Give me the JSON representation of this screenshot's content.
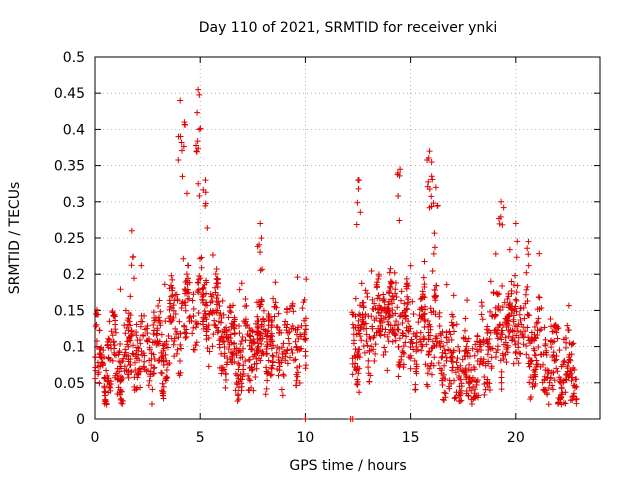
{
  "chart_data": {
    "type": "scatter",
    "title": "Day 110 of 2021, SRMTID for receiver ynki",
    "xlabel": "GPS time / hours",
    "ylabel": "SRMTID / TECUs",
    "xlim": [
      0,
      24
    ],
    "ylim": [
      0,
      0.5
    ],
    "xticks": [
      0,
      5,
      10,
      15,
      20
    ],
    "yticks": [
      0,
      0.05,
      0.1,
      0.15,
      0.2,
      0.25,
      0.3,
      0.35,
      0.4,
      0.45,
      0.5
    ],
    "xtick_labels": [
      "0",
      "5",
      "10",
      "15",
      "20"
    ],
    "ytick_labels": [
      "0",
      "0.05",
      "0.1",
      "0.15",
      "0.2",
      "0.25",
      "0.3",
      "0.35",
      "0.4",
      "0.45",
      "0.5"
    ],
    "grid": true,
    "marker": "+",
    "color": "#e00000",
    "gaps": [
      [
        10.05,
        12.2
      ]
    ],
    "series": [
      {
        "name": "SRMTID",
        "segments": [
          {
            "t0": 0.0,
            "t1": 10.05,
            "n": 900,
            "base": [
              [
                0.0,
                0.08
              ],
              [
                1.0,
                0.08
              ],
              [
                2.0,
                0.09
              ],
              [
                3.0,
                0.09
              ],
              [
                4.0,
                0.13
              ],
              [
                5.0,
                0.16
              ],
              [
                6.0,
                0.12
              ],
              [
                7.0,
                0.08
              ],
              [
                8.0,
                0.11
              ],
              [
                9.0,
                0.11
              ],
              [
                10.0,
                0.1
              ]
            ]
          },
          {
            "t0": 12.2,
            "t1": 22.9,
            "n": 950,
            "base": [
              [
                12.2,
                0.12
              ],
              [
                13.0,
                0.12
              ],
              [
                14.0,
                0.14
              ],
              [
                15.0,
                0.12
              ],
              [
                16.0,
                0.12
              ],
              [
                17.0,
                0.07
              ],
              [
                18.0,
                0.06
              ],
              [
                19.0,
                0.12
              ],
              [
                20.0,
                0.13
              ],
              [
                21.0,
                0.09
              ],
              [
                22.0,
                0.07
              ],
              [
                22.9,
                0.06
              ]
            ]
          }
        ],
        "peaks": [
          {
            "x": 4.05,
            "y": 0.44
          },
          {
            "x": 4.25,
            "y": 0.41
          },
          {
            "x": 4.9,
            "y": 0.455
          },
          {
            "x": 4.95,
            "y": 0.4
          },
          {
            "x": 5.25,
            "y": 0.33
          },
          {
            "x": 1.75,
            "y": 0.26
          },
          {
            "x": 7.85,
            "y": 0.27
          },
          {
            "x": 12.5,
            "y": 0.33
          },
          {
            "x": 14.5,
            "y": 0.345
          },
          {
            "x": 15.9,
            "y": 0.37
          },
          {
            "x": 16.0,
            "y": 0.355
          },
          {
            "x": 16.2,
            "y": 0.32
          },
          {
            "x": 19.3,
            "y": 0.3
          },
          {
            "x": 20.0,
            "y": 0.27
          },
          {
            "x": 20.6,
            "y": 0.245
          }
        ],
        "isolated": [
          {
            "x": 10.0,
            "y": 0.0
          },
          {
            "x": 12.15,
            "y": 0.0
          },
          {
            "x": 12.25,
            "y": 0.0
          },
          {
            "x": 12.55,
            "y": 0.037
          }
        ]
      }
    ]
  }
}
